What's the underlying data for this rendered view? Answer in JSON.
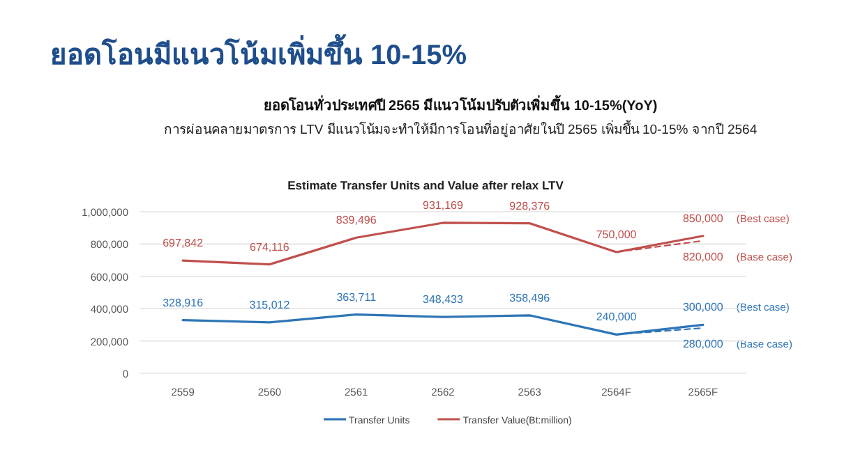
{
  "chart_data": {
    "type": "line",
    "title": "ยอดโอนมีแนวโน้มเพิ่มขึ้น 10-15%",
    "subtitle": "ยอดโอนทั่วประเทศปี 2565 มีแนวโน้มปรับตัวเพิ่มขึ้น 10-15%(YoY)",
    "annotations": [
      "การผ่อนคลายมาตรการ LTV มีแนวโน้มจะทำให้มีการโอนที่อยู่อาศัยในปี 2565 เพิ่มขึ้น 10-15% จากปี 2564",
      "Estimate Transfer Units and Value after relax LTV",
      "(Best case)",
      "(Base case)",
      "(Best case)",
      "(Base case)"
    ],
    "categories": [
      "2559",
      "2560",
      "2561",
      "2562",
      "2563",
      "2564F",
      "2565F"
    ],
    "series": [
      {
        "name": "Transfer Units",
        "color": "#2e75b6",
        "values": [
          328916,
          315012,
          363711,
          348433,
          358496,
          240000,
          300000
        ],
        "value_labels": [
          "328,916",
          "315,012",
          "363,711",
          "348,433",
          "358,496",
          "240,000",
          "300,000"
        ]
      },
      {
        "name": "Transfer Value(Bt:million)",
        "color": "#c0504d",
        "values": [
          697842,
          674116,
          839496,
          931169,
          928376,
          750000,
          850000
        ],
        "value_labels": [
          "697,842",
          "674,116",
          "839,496",
          "931,169",
          "928,376",
          "750,000",
          "850,000"
        ]
      },
      {
        "color": "#2e75b6",
        "line_style": "dashed",
        "values": [
          null,
          null,
          null,
          null,
          null,
          240000,
          280000
        ],
        "value_labels": [
          null,
          null,
          null,
          null,
          null,
          null,
          "280,000"
        ]
      },
      {
        "color": "#c0504d",
        "line_style": "dashed",
        "values": [
          null,
          null,
          null,
          null,
          null,
          750000,
          820000
        ],
        "value_labels": [
          null,
          null,
          null,
          null,
          null,
          null,
          "820,000"
        ]
      }
    ],
    "ylim": [
      0,
      1000000
    ],
    "yticks": [
      0,
      {
        "value": 200000,
        "label": "200,000"
      },
      {
        "value": 400000,
        "label": "400,000"
      },
      {
        "value": 600000,
        "label": "600,000"
      },
      {
        "value": 800000,
        "label": "800,000"
      },
      {
        "value": 1000000,
        "label": "1,000,000"
      }
    ],
    "grid": "y",
    "legend": "bottom",
    "line_style": "solid",
    "marker": "none"
  }
}
